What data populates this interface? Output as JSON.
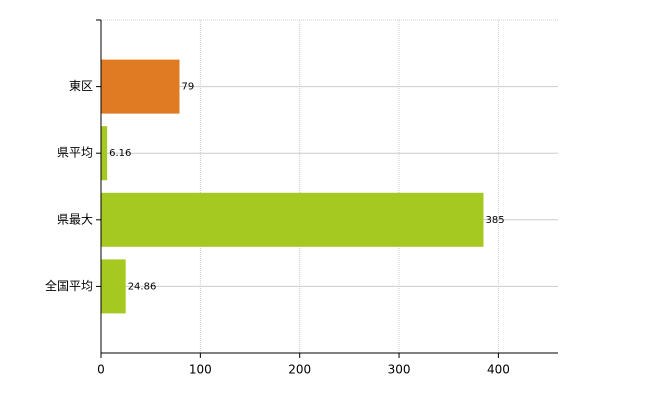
{
  "chart_data": {
    "type": "hbar",
    "categories": [
      "東区",
      "県平均",
      "県最大",
      "全国平均"
    ],
    "values": [
      79,
      6.16,
      385,
      24.86
    ],
    "colors": [
      "#e07a23",
      "#a6c922",
      "#a6c922",
      "#a6c922"
    ],
    "xlim": [
      0,
      460
    ],
    "xticks": [
      0,
      100,
      200,
      300,
      400
    ],
    "grid": true
  }
}
